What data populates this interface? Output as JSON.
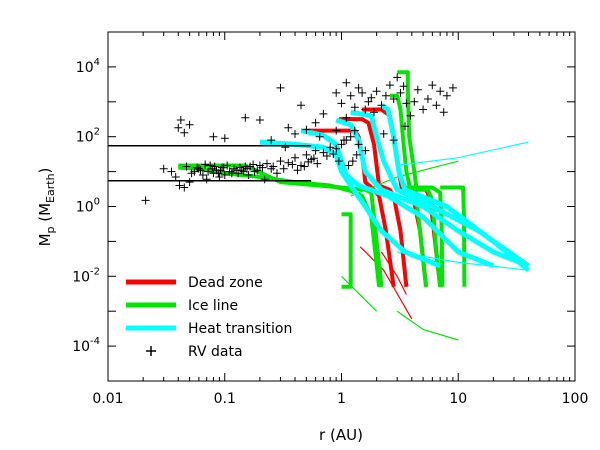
{
  "chart_data": {
    "type": "line",
    "xscale": "log",
    "yscale": "log",
    "xlim": [
      0.01,
      100
    ],
    "ylim": [
      1e-05,
      100000
    ],
    "xlabel": "r (AU)",
    "ylabel": {
      "main": "M",
      "sub": "p",
      "unit_open": " (M",
      "unit_sub": "Earth",
      "unit_close": ")"
    },
    "x_ticks": [
      {
        "value": 0.01,
        "label": "0.01"
      },
      {
        "value": 0.1,
        "label": "0.1"
      },
      {
        "value": 1,
        "label": "1"
      },
      {
        "value": 10,
        "label": "10"
      },
      {
        "value": 100,
        "label": "100"
      }
    ],
    "y_ticks": [
      {
        "value": 0.0001,
        "base": "10",
        "exp": "-4"
      },
      {
        "value": 0.01,
        "base": "10",
        "exp": "-2"
      },
      {
        "value": 1,
        "base": "10",
        "exp": "0"
      },
      {
        "value": 100,
        "base": "10",
        "exp": "2"
      },
      {
        "value": 10000,
        "base": "10",
        "exp": "4"
      }
    ],
    "legend_position": "bottom-left",
    "legend": [
      {
        "label": "Dead zone",
        "color": "#ff0000",
        "kind": "line"
      },
      {
        "label": "Ice line",
        "color": "#00e600",
        "kind": "line"
      },
      {
        "label": "Heat transition",
        "color": "#00ffff",
        "kind": "line"
      },
      {
        "label": "RV data",
        "color": "#000000",
        "kind": "plus"
      }
    ],
    "series": [
      {
        "group": "Dead zone",
        "color": "#ff0000",
        "width": 4,
        "tracks": [
          [
            [
              0.45,
              150
            ],
            [
              1.3,
              150
            ],
            [
              1.4,
              100
            ],
            [
              1.5,
              30
            ],
            [
              1.6,
              5
            ],
            [
              1.9,
              3
            ],
            [
              2.1,
              2
            ],
            [
              2.4,
              0.2
            ],
            [
              2.8,
              0.005
            ]
          ],
          [
            [
              0.95,
              320
            ],
            [
              1.5,
              320
            ],
            [
              1.7,
              250
            ],
            [
              1.9,
              60
            ],
            [
              2.1,
              4
            ],
            [
              2.6,
              3
            ],
            [
              2.8,
              2
            ],
            [
              3.2,
              0.2
            ],
            [
              3.6,
              0.005
            ]
          ],
          [
            [
              1.5,
              600
            ],
            [
              2.2,
              600
            ],
            [
              2.6,
              400
            ],
            [
              3,
              20
            ],
            [
              3.3,
              3
            ],
            [
              3.8,
              2.8
            ],
            [
              4.1,
              2
            ],
            [
              4.7,
              0.2
            ],
            [
              5.3,
              0.005
            ]
          ],
          [
            [
              3.8,
              3.5
            ],
            [
              5,
              3.5
            ],
            [
              5.5,
              2.5
            ],
            [
              6,
              0.5
            ],
            [
              7,
              0.005
            ]
          ]
        ]
      },
      {
        "group": "Dead zone",
        "color": "#ff0000",
        "width": 1.2,
        "tracks": [
          [
            [
              1.45,
              0.07
            ],
            [
              2.3,
              0.015
            ],
            [
              4,
              0.0006
            ]
          ],
          [
            [
              2.2,
              0.05
            ],
            [
              3,
              0.01
            ],
            [
              3.6,
              0.003
            ]
          ]
        ]
      },
      {
        "group": "Ice line",
        "color": "#00e600",
        "width": 4,
        "tracks": [
          [
            [
              0.04,
              15
            ],
            [
              0.15,
              15
            ],
            [
              0.3,
              5
            ],
            [
              1,
              3.5
            ],
            [
              1.6,
              3
            ],
            [
              1.8,
              2.5
            ],
            [
              1.9,
              0.5
            ],
            [
              2.2,
              0.005
            ]
          ],
          [
            [
              0.04,
              13
            ],
            [
              0.06,
              12
            ],
            [
              0.1,
              9
            ],
            [
              0.2,
              7
            ],
            [
              0.4,
              5
            ],
            [
              0.8,
              4
            ],
            [
              1.2,
              2.8
            ],
            [
              1.5,
              2
            ],
            [
              1.8,
              0.5
            ],
            [
              2.1,
              0.005
            ]
          ],
          [
            [
              2.6,
              1500
            ],
            [
              3,
              1500
            ],
            [
              3.2,
              600
            ],
            [
              3.4,
              60
            ],
            [
              3.6,
              10
            ],
            [
              3.9,
              3
            ],
            [
              4.3,
              2.5
            ],
            [
              4.7,
              0.2
            ],
            [
              5.3,
              0.005
            ]
          ],
          [
            [
              3,
              7000
            ],
            [
              3.7,
              7000
            ],
            [
              3.7,
              2000
            ],
            [
              3.8,
              100
            ],
            [
              4.2,
              10
            ],
            [
              4.4,
              3
            ],
            [
              5.5,
              3
            ],
            [
              6,
              1.5
            ],
            [
              6.5,
              0.05
            ],
            [
              7,
              0.005
            ]
          ],
          [
            [
              3.5,
              3.5
            ],
            [
              6,
              3.5
            ],
            [
              7,
              2.5
            ],
            [
              7.2,
              0.3
            ],
            [
              7.3,
              0.005
            ]
          ],
          [
            [
              7,
              3.5
            ],
            [
              11,
              3.5
            ],
            [
              11.2,
              0.5
            ],
            [
              11.3,
              0.005
            ]
          ],
          [
            [
              1,
              0.6
            ],
            [
              1.2,
              0.6
            ],
            [
              1.2,
              0.005
            ],
            [
              1.0,
              0.005
            ]
          ]
        ]
      },
      {
        "group": "Ice line",
        "color": "#00e600",
        "width": 1.2,
        "tracks": [
          [
            [
              1.2,
              2
            ],
            [
              3,
              7
            ],
            [
              10,
              20
            ]
          ],
          [
            [
              1,
              0.01
            ],
            [
              2,
              0.001
            ]
          ],
          [
            [
              3,
              0.001
            ],
            [
              5,
              0.0003
            ],
            [
              10,
              0.00015
            ]
          ]
        ]
      },
      {
        "group": "Heat transition",
        "color": "#00ffff",
        "width": 5,
        "tracks": [
          [
            [
              0.2,
              70
            ],
            [
              0.4,
              60
            ],
            [
              0.7,
              50
            ],
            [
              0.9,
              30
            ],
            [
              1.0,
              10
            ],
            [
              1.2,
              4
            ],
            [
              1.6,
              1
            ],
            [
              2.2,
              0.2
            ],
            [
              3.5,
              0.05
            ],
            [
              7,
              0.02
            ]
          ],
          [
            [
              0.45,
              150
            ],
            [
              0.7,
              110
            ],
            [
              0.9,
              60
            ],
            [
              1.1,
              8
            ],
            [
              1.4,
              4
            ],
            [
              2.5,
              2
            ],
            [
              5,
              0.5
            ],
            [
              10,
              0.05
            ],
            [
              20,
              0.02
            ]
          ],
          [
            [
              0.9,
              300
            ],
            [
              1.2,
              220
            ],
            [
              1.4,
              80
            ],
            [
              1.6,
              10
            ],
            [
              2.2,
              3
            ],
            [
              5,
              1
            ],
            [
              10,
              0.2
            ],
            [
              20,
              0.05
            ],
            [
              40,
              0.02
            ]
          ],
          [
            [
              1.2,
              500
            ],
            [
              1.8,
              400
            ],
            [
              2,
              100
            ],
            [
              2.3,
              20
            ],
            [
              3,
              3
            ],
            [
              6,
              1
            ],
            [
              15,
              0.2
            ],
            [
              40,
              0.02
            ]
          ],
          [
            [
              2.2,
              800
            ],
            [
              2.5,
              600
            ],
            [
              2.8,
              100
            ],
            [
              3.1,
              10
            ],
            [
              3.5,
              3
            ],
            [
              8,
              1
            ],
            [
              20,
              0.1
            ],
            [
              40,
              0.015
            ]
          ]
        ]
      },
      {
        "group": "Heat transition",
        "color": "#00ffff",
        "width": 1.2,
        "tracks": [
          [
            [
              3,
              15
            ],
            [
              10,
              25
            ],
            [
              40,
              70
            ]
          ],
          [
            [
              3,
              0.05
            ],
            [
              10,
              0.025
            ],
            [
              40,
              0.015
            ]
          ]
        ]
      },
      {
        "group": "reference",
        "color": "#000000",
        "width": 1.5,
        "tracks": [
          [
            [
              0.01,
              55
            ],
            [
              0.55,
              55
            ]
          ],
          [
            [
              0.01,
              5.5
            ],
            [
              0.55,
              5.5
            ]
          ]
        ]
      }
    ],
    "rv_data": [
      [
        0.021,
        1.5
      ],
      [
        0.038,
        7
      ],
      [
        0.041,
        4
      ],
      [
        0.045,
        3.5
      ],
      [
        0.05,
        5
      ],
      [
        0.055,
        10
      ],
      [
        0.06,
        12
      ],
      [
        0.065,
        8
      ],
      [
        0.07,
        6
      ],
      [
        0.075,
        15
      ],
      [
        0.08,
        9
      ],
      [
        0.085,
        11
      ],
      [
        0.09,
        7
      ],
      [
        0.095,
        13
      ],
      [
        0.1,
        8
      ],
      [
        0.11,
        10
      ],
      [
        0.12,
        12
      ],
      [
        0.13,
        9
      ],
      [
        0.14,
        11
      ],
      [
        0.15,
        14
      ],
      [
        0.16,
        8
      ],
      [
        0.18,
        10
      ],
      [
        0.2,
        15
      ],
      [
        0.22,
        6
      ],
      [
        0.25,
        12
      ],
      [
        0.28,
        9
      ],
      [
        0.3,
        20
      ],
      [
        0.35,
        18
      ],
      [
        0.4,
        25
      ],
      [
        0.45,
        15
      ],
      [
        0.5,
        30
      ],
      [
        0.55,
        22
      ],
      [
        0.6,
        40
      ],
      [
        0.7,
        35
      ],
      [
        0.8,
        50
      ],
      [
        0.9,
        45
      ],
      [
        1.0,
        60
      ],
      [
        1.1,
        80
      ],
      [
        1.2,
        100
      ],
      [
        1.3,
        150
      ],
      [
        0.04,
        180
      ],
      [
        0.042,
        300
      ],
      [
        0.045,
        130
      ],
      [
        0.05,
        220
      ],
      [
        0.08,
        100
      ],
      [
        0.1,
        90
      ],
      [
        0.15,
        350
      ],
      [
        0.2,
        300
      ],
      [
        0.25,
        80
      ],
      [
        0.3,
        2500
      ],
      [
        0.33,
        50
      ],
      [
        0.35,
        180
      ],
      [
        0.4,
        120
      ],
      [
        0.45,
        800
      ],
      [
        0.5,
        160
      ],
      [
        0.6,
        250
      ],
      [
        0.65,
        100
      ],
      [
        0.7,
        450
      ],
      [
        0.9,
        150
      ],
      [
        1.0,
        900
      ],
      [
        1.1,
        350
      ],
      [
        1.2,
        1500
      ],
      [
        1.3,
        700
      ],
      [
        1.4,
        2500
      ],
      [
        1.5,
        1800
      ],
      [
        1.6,
        600
      ],
      [
        1.7,
        1000
      ],
      [
        1.8,
        1300
      ],
      [
        1.9,
        500
      ],
      [
        2.0,
        2000
      ],
      [
        2.2,
        800
      ],
      [
        2.4,
        1500
      ],
      [
        2.6,
        3000
      ],
      [
        2.8,
        1200
      ],
      [
        3.0,
        5000
      ],
      [
        3.2,
        1800
      ],
      [
        3.4,
        2800
      ],
      [
        3.6,
        900
      ],
      [
        3.9,
        400
      ],
      [
        4.2,
        1000
      ],
      [
        4.5,
        2200
      ],
      [
        5,
        600
      ],
      [
        5.5,
        1200
      ],
      [
        6,
        3000
      ],
      [
        6.5,
        800
      ],
      [
        7,
        2000
      ],
      [
        7.5,
        500
      ],
      [
        8,
        1500
      ],
      [
        9,
        2500
      ],
      [
        1.1,
        3500
      ],
      [
        0.9,
        1800
      ],
      [
        1.05,
        80
      ],
      [
        1.4,
        60
      ],
      [
        1.6,
        40
      ],
      [
        2.3,
        120
      ],
      [
        2.8,
        80
      ],
      [
        3.5,
        200
      ],
      [
        0.03,
        12
      ],
      [
        0.035,
        10
      ],
      [
        0.047,
        14
      ],
      [
        0.052,
        9
      ],
      [
        0.058,
        13
      ],
      [
        0.062,
        11
      ],
      [
        0.068,
        16
      ],
      [
        0.072,
        10
      ],
      [
        0.078,
        12
      ],
      [
        0.082,
        14
      ],
      [
        0.088,
        9
      ],
      [
        0.092,
        11
      ],
      [
        0.098,
        13
      ],
      [
        0.105,
        15
      ],
      [
        0.115,
        9
      ],
      [
        0.125,
        11
      ],
      [
        0.135,
        13
      ],
      [
        0.145,
        10
      ],
      [
        0.155,
        12
      ],
      [
        0.165,
        14
      ],
      [
        0.175,
        16
      ],
      [
        0.19,
        11
      ],
      [
        0.21,
        13
      ],
      [
        0.23,
        17
      ],
      [
        0.26,
        14
      ],
      [
        0.32,
        12
      ],
      [
        0.38,
        16
      ],
      [
        0.42,
        11
      ],
      [
        0.48,
        14
      ],
      [
        0.52,
        19
      ],
      [
        0.58,
        24
      ],
      [
        0.62,
        17
      ],
      [
        0.75,
        28
      ],
      [
        0.85,
        32
      ],
      [
        0.95,
        20
      ],
      [
        1.15,
        15
      ],
      [
        1.25,
        20
      ],
      [
        1.35,
        30
      ]
    ]
  }
}
